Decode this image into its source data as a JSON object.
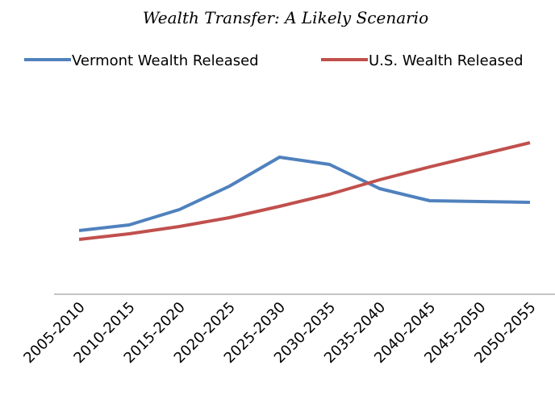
{
  "chart_data": {
    "type": "line",
    "title": "Wealth Transfer: A Likely Scenario",
    "categories": [
      "2005-2010",
      "2010-2015",
      "2015-2020",
      "2020-2025",
      "2025-2030",
      "2030-2035",
      "2035-2040",
      "2040-2045",
      "2045-2050",
      "2050-2055"
    ],
    "series": [
      {
        "name": "Vermont Wealth Released",
        "color": "#4f81bd",
        "values": [
          79,
          86,
          105,
          134,
          170,
          161,
          131,
          116,
          115,
          114
        ]
      },
      {
        "name": "U.S. Wealth Released",
        "color": "#c0504d",
        "values": [
          68,
          75,
          84,
          95,
          109,
          124,
          142,
          158,
          173,
          188
        ]
      }
    ],
    "ylim": [
      0,
      250
    ],
    "legend": "top"
  }
}
